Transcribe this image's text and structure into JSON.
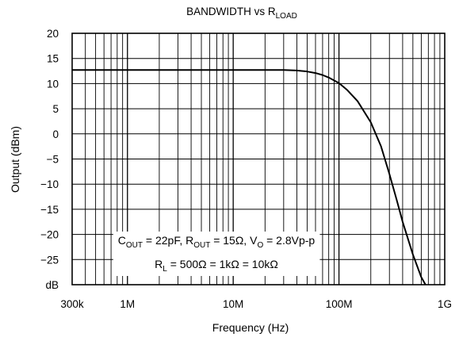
{
  "chart_data": {
    "type": "line",
    "title": {
      "main": "BANDWIDTH vs R",
      "sub": "LOAD"
    },
    "xlabel": "Frequency (Hz)",
    "ylabel": "Output (dBm)",
    "xscale": "log",
    "xlim": [
      300000,
      1000000000
    ],
    "ylim": [
      -30,
      20
    ],
    "x_ticks": [
      {
        "value": 300000,
        "label": "300k"
      },
      {
        "value": 1000000,
        "label": "1M"
      },
      {
        "value": 10000000,
        "label": "10M"
      },
      {
        "value": 100000000,
        "label": "100M"
      },
      {
        "value": 1000000000,
        "label": "1G"
      }
    ],
    "y_ticks": [
      {
        "value": 20,
        "label": "20"
      },
      {
        "value": 15,
        "label": "15"
      },
      {
        "value": 10,
        "label": "10"
      },
      {
        "value": 5,
        "label": "5"
      },
      {
        "value": 0,
        "label": "0"
      },
      {
        "value": -5,
        "label": "−5"
      },
      {
        "value": -10,
        "label": "−10"
      },
      {
        "value": -15,
        "label": "−15"
      },
      {
        "value": -20,
        "label": "−20"
      },
      {
        "value": -25,
        "label": "−25"
      },
      {
        "value": -30,
        "label": "dB"
      }
    ],
    "grid": true,
    "series": [
      {
        "x": [
          300000,
          1000000,
          10000000,
          30000000,
          40000000,
          50000000,
          60000000,
          70000000,
          80000000,
          100000000,
          120000000,
          150000000,
          200000000,
          250000000,
          300000000,
          350000000,
          400000000,
          500000000,
          600000000,
          700000000
        ],
        "y": [
          12.7,
          12.7,
          12.7,
          12.7,
          12.6,
          12.4,
          12.1,
          11.7,
          11.2,
          10.1,
          8.7,
          6.5,
          2.3,
          -2.5,
          -8,
          -13,
          -17.5,
          -24,
          -28.5,
          -31
        ]
      }
    ],
    "annotation": {
      "line1": [
        {
          "t": "C"
        },
        {
          "t": "OUT",
          "sub": true
        },
        {
          "t": " = 22pF, R"
        },
        {
          "t": "OUT",
          "sub": true
        },
        {
          "t": " = 15Ω, V"
        },
        {
          "t": "O",
          "sub": true
        },
        {
          "t": " = 2.8Vp-p"
        }
      ],
      "line2": [
        {
          "t": "R"
        },
        {
          "t": "L",
          "sub": true
        },
        {
          "t": " = 500Ω = 1kΩ = 10kΩ"
        }
      ]
    },
    "colors": {
      "line": "#000000",
      "grid": "#000000",
      "background": "#ffffff"
    }
  }
}
